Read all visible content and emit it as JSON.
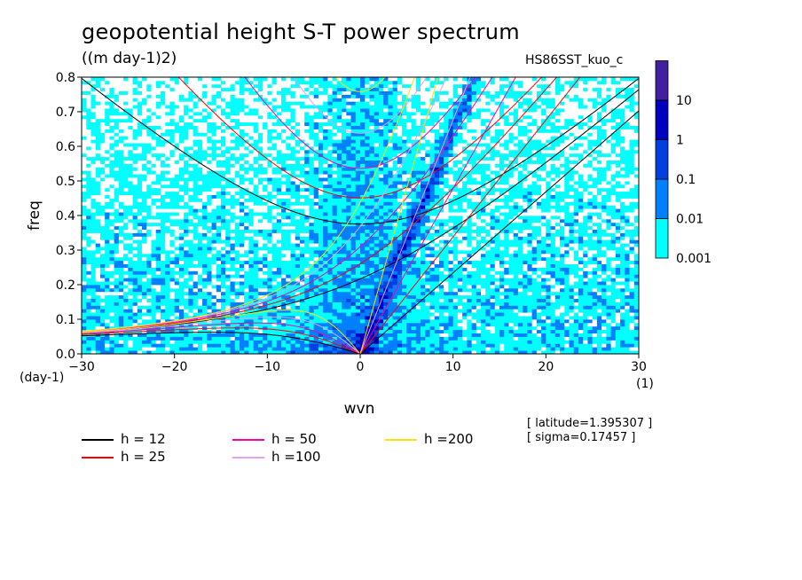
{
  "chart_data": {
    "type": "heatmap",
    "title": "geopotential height S-T power spectrum",
    "units_label": "((m day-1)2)",
    "run_label": "HS86SST_kuo_c",
    "xlabel": "wvn",
    "ylabel": "freq",
    "x_unit_label": "(1)",
    "y_unit_label": "(day-1)",
    "xlim": [
      -30,
      30
    ],
    "ylim": [
      0,
      0.8
    ],
    "x_ticks": [
      -30,
      -20,
      -10,
      0,
      10,
      20,
      30
    ],
    "y_ticks": [
      0.0,
      0.1,
      0.2,
      0.3,
      0.4,
      0.5,
      0.6,
      0.7,
      0.8
    ],
    "colorbar": {
      "levels": [
        "0.001",
        "0.01",
        "0.1",
        "1",
        "10"
      ],
      "colors": [
        "#00ffff",
        "#0080ff",
        "#0040e0",
        "#0000c0",
        "#4020a0"
      ]
    },
    "dispersion_curves": [
      {
        "name": "h = 12",
        "h": 12,
        "color": "#000000"
      },
      {
        "name": "h = 25",
        "h": 25,
        "color": "#ff0000"
      },
      {
        "name": "h = 50",
        "h": 50,
        "color": "#ff00a0"
      },
      {
        "name": "h =100",
        "h": 100,
        "color": "#e0a0ff"
      },
      {
        "name": "h =200",
        "h": 200,
        "color": "#ffe000"
      }
    ],
    "annotations": [
      "[ latitude=1.395307 ]",
      "[ sigma=0.17457 ]"
    ]
  }
}
